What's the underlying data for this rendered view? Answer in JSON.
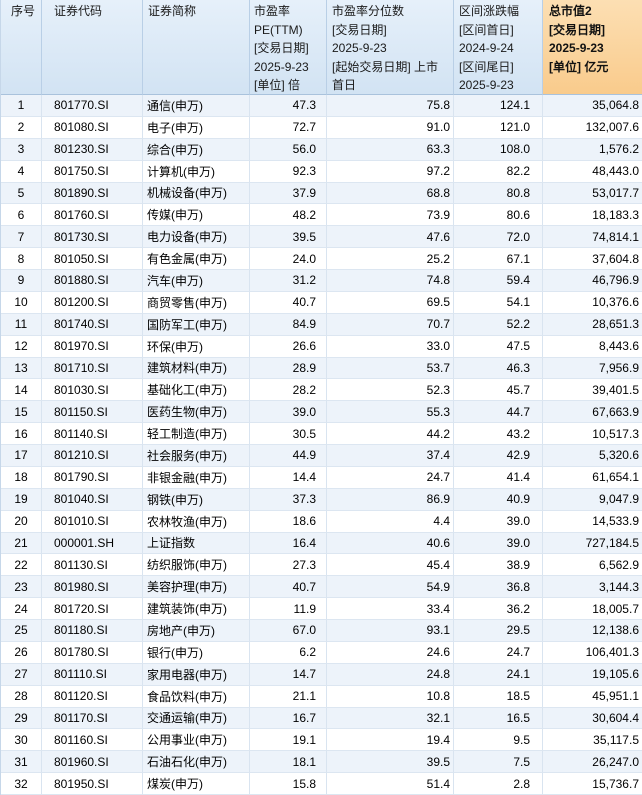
{
  "table": {
    "columns": [
      {
        "id": "seq",
        "label": "序号"
      },
      {
        "id": "code",
        "label": "证券代码"
      },
      {
        "id": "name",
        "label": "证券简称"
      },
      {
        "id": "pe",
        "label": "市盈率\nPE(TTM)\n[交易日期]\n2025-9-23\n[单位] 倍"
      },
      {
        "id": "pe-percentile",
        "label": "市盈率分位数\n[交易日期]\n2025-9-23\n[起始交易日期] 上市\n首日"
      },
      {
        "id": "range-change",
        "label": "区间涨跌幅\n[区间首日]\n2024-9-24\n[区间尾日]\n2025-9-23"
      },
      {
        "id": "market-cap",
        "label": "总市值2\n[交易日期]\n2025-9-23\n[单位] 亿元"
      }
    ],
    "rows": [
      [
        "1",
        "801770.SI",
        "通信(申万)",
        "47.3",
        "75.8",
        "124.1",
        "35,064.8"
      ],
      [
        "2",
        "801080.SI",
        "电子(申万)",
        "72.7",
        "91.0",
        "121.0",
        "132,007.6"
      ],
      [
        "3",
        "801230.SI",
        "综合(申万)",
        "56.0",
        "63.3",
        "108.0",
        "1,576.2"
      ],
      [
        "4",
        "801750.SI",
        "计算机(申万)",
        "92.3",
        "97.2",
        "82.2",
        "48,443.0"
      ],
      [
        "5",
        "801890.SI",
        "机械设备(申万)",
        "37.9",
        "68.8",
        "80.8",
        "53,017.7"
      ],
      [
        "6",
        "801760.SI",
        "传媒(申万)",
        "48.2",
        "73.9",
        "80.6",
        "18,183.3"
      ],
      [
        "7",
        "801730.SI",
        "电力设备(申万)",
        "39.5",
        "47.6",
        "72.0",
        "74,814.1"
      ],
      [
        "8",
        "801050.SI",
        "有色金属(申万)",
        "24.0",
        "25.2",
        "67.1",
        "37,604.8"
      ],
      [
        "9",
        "801880.SI",
        "汽车(申万)",
        "31.2",
        "74.8",
        "59.4",
        "46,796.9"
      ],
      [
        "10",
        "801200.SI",
        "商贸零售(申万)",
        "40.7",
        "69.5",
        "54.1",
        "10,376.6"
      ],
      [
        "11",
        "801740.SI",
        "国防军工(申万)",
        "84.9",
        "70.7",
        "52.2",
        "28,651.3"
      ],
      [
        "12",
        "801970.SI",
        "环保(申万)",
        "26.6",
        "33.0",
        "47.5",
        "8,443.6"
      ],
      [
        "13",
        "801710.SI",
        "建筑材料(申万)",
        "28.9",
        "53.7",
        "46.3",
        "7,956.9"
      ],
      [
        "14",
        "801030.SI",
        "基础化工(申万)",
        "28.2",
        "52.3",
        "45.7",
        "39,401.5"
      ],
      [
        "15",
        "801150.SI",
        "医药生物(申万)",
        "39.0",
        "55.3",
        "44.7",
        "67,663.9"
      ],
      [
        "16",
        "801140.SI",
        "轻工制造(申万)",
        "30.5",
        "44.2",
        "43.2",
        "10,517.3"
      ],
      [
        "17",
        "801210.SI",
        "社会服务(申万)",
        "44.9",
        "37.4",
        "42.9",
        "5,320.6"
      ],
      [
        "18",
        "801790.SI",
        "非银金融(申万)",
        "14.4",
        "24.7",
        "41.4",
        "61,654.1"
      ],
      [
        "19",
        "801040.SI",
        "钢铁(申万)",
        "37.3",
        "86.9",
        "40.9",
        "9,047.9"
      ],
      [
        "20",
        "801010.SI",
        "农林牧渔(申万)",
        "18.6",
        "4.4",
        "39.0",
        "14,533.9"
      ],
      [
        "21",
        "000001.SH",
        "上证指数",
        "16.4",
        "40.6",
        "39.0",
        "727,184.5"
      ],
      [
        "22",
        "801130.SI",
        "纺织服饰(申万)",
        "27.3",
        "45.4",
        "38.9",
        "6,562.9"
      ],
      [
        "23",
        "801980.SI",
        "美容护理(申万)",
        "40.7",
        "54.9",
        "36.8",
        "3,144.3"
      ],
      [
        "24",
        "801720.SI",
        "建筑装饰(申万)",
        "11.9",
        "33.4",
        "36.2",
        "18,005.7"
      ],
      [
        "25",
        "801180.SI",
        "房地产(申万)",
        "67.0",
        "93.1",
        "29.5",
        "12,138.6"
      ],
      [
        "26",
        "801780.SI",
        "银行(申万)",
        "6.2",
        "24.6",
        "24.7",
        "106,401.3"
      ],
      [
        "27",
        "801110.SI",
        "家用电器(申万)",
        "14.7",
        "24.8",
        "24.1",
        "19,105.6"
      ],
      [
        "28",
        "801120.SI",
        "食品饮料(申万)",
        "21.1",
        "10.8",
        "18.5",
        "45,951.1"
      ],
      [
        "29",
        "801170.SI",
        "交通运输(申万)",
        "16.7",
        "32.1",
        "16.5",
        "30,604.4"
      ],
      [
        "30",
        "801160.SI",
        "公用事业(申万)",
        "19.1",
        "19.4",
        "9.5",
        "35,117.5"
      ],
      [
        "31",
        "801960.SI",
        "石油石化(申万)",
        "18.1",
        "39.5",
        "7.5",
        "26,247.0"
      ],
      [
        "32",
        "801950.SI",
        "煤炭(申万)",
        "15.8",
        "51.4",
        "2.8",
        "15,736.7"
      ]
    ]
  },
  "colors": {
    "header_bg": "#D7E6F4",
    "highlight_header_bg": "#FBD29A",
    "zebra_row_bg": "#EDF3FA",
    "grid_line": "#D9E4F0",
    "text": "#000000"
  }
}
